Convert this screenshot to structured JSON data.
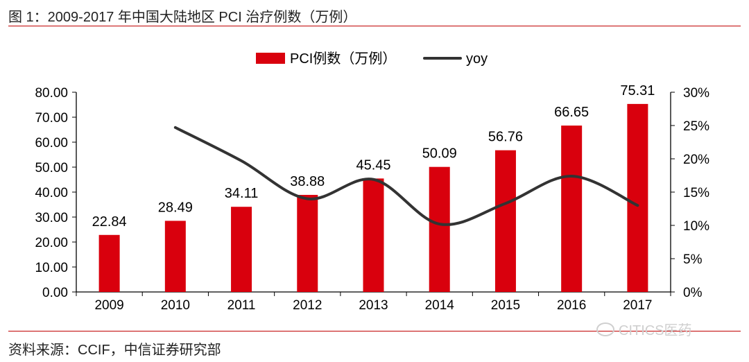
{
  "header": {
    "title": "图 1：2009-2017 年中国大陆地区 PCI 治疗例数（万例）"
  },
  "footer": {
    "source": "资料来源：CCIF，中信证券研究部",
    "watermark": "CITICS医药"
  },
  "colors": {
    "bar": "#d9000d",
    "line": "#333333",
    "rule": "#c00000"
  },
  "chart_data": {
    "type": "bar",
    "title": "2009-2017 年中国大陆地区 PCI 治疗例数（万例）",
    "categories": [
      "2009",
      "2010",
      "2011",
      "2012",
      "2013",
      "2014",
      "2015",
      "2016",
      "2017"
    ],
    "series": [
      {
        "name": "PCI例数（万例）",
        "kind": "bar",
        "axis": "left",
        "values": [
          22.84,
          28.49,
          34.11,
          38.88,
          45.45,
          50.09,
          56.76,
          66.65,
          75.31
        ],
        "labels": [
          "22.84",
          "28.49",
          "34.11",
          "38.88",
          "45.45",
          "50.09",
          "56.76",
          "66.65",
          "75.31"
        ]
      },
      {
        "name": "yoy",
        "kind": "line",
        "axis": "right",
        "values": [
          null,
          24.7,
          19.7,
          14.0,
          16.9,
          10.2,
          13.3,
          17.4,
          13.0
        ]
      }
    ],
    "y_left": {
      "min": 0,
      "max": 80,
      "ticks": [
        "0.00",
        "10.00",
        "20.00",
        "30.00",
        "40.00",
        "50.00",
        "60.00",
        "70.00",
        "80.00"
      ]
    },
    "y_right": {
      "min": 0,
      "max": 30,
      "ticks": [
        "0%",
        "5%",
        "10%",
        "15%",
        "20%",
        "25%",
        "30%"
      ]
    },
    "legend": {
      "position": "top-center",
      "items": [
        "PCI例数（万例）",
        "yoy"
      ]
    }
  }
}
